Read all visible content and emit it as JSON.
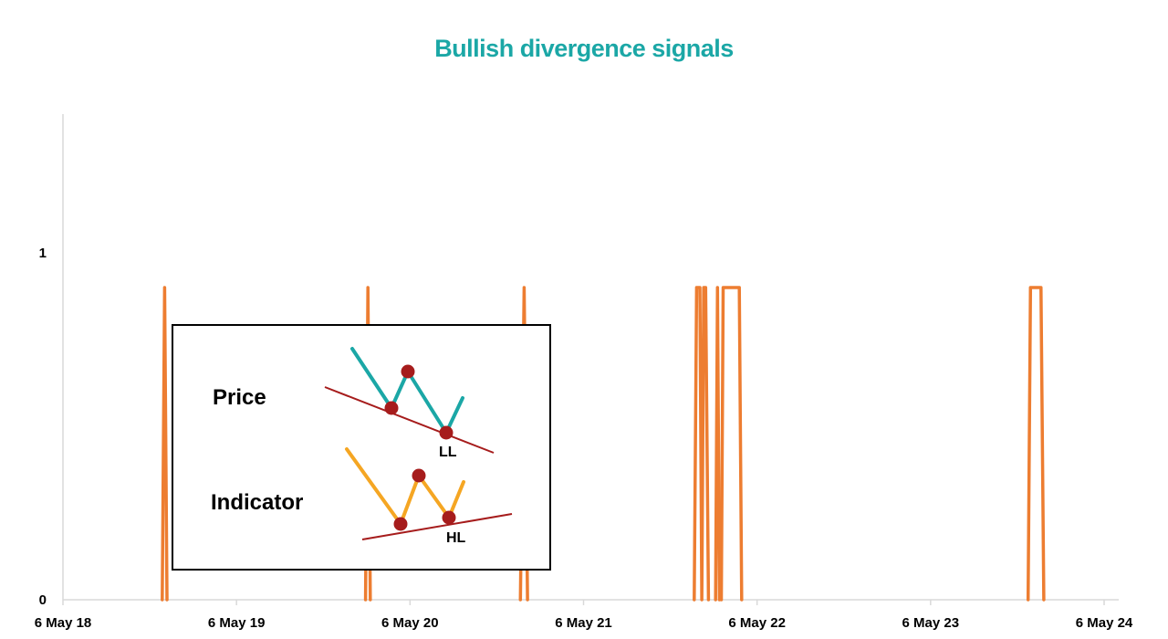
{
  "chart_data": {
    "type": "line",
    "title": "Bullish divergence signals",
    "xlabel": "",
    "ylabel": "",
    "x_ticks": [
      "6 May 18",
      "6 May 19",
      "6 May 20",
      "6 May 21",
      "6 May 22",
      "6 May 23",
      "6 May 24"
    ],
    "y_ticks": [
      "0",
      "1"
    ],
    "ylim": [
      0,
      1.4
    ],
    "xlim": [
      "2018-05-06",
      "2024-05-06"
    ],
    "series": [
      {
        "color": "#ED7D31",
        "x": [
          "2018-12-01",
          "2018-12-06",
          "2018-12-11",
          "2020-02-02",
          "2020-02-07",
          "2020-02-12",
          "2020-12-24",
          "2021-01-01",
          "2021-01-08",
          "2021-12-25",
          "2021-12-30",
          "2022-01-06",
          "2022-01-10",
          "2022-01-14",
          "2022-01-18",
          "2022-01-24",
          "2022-02-08",
          "2022-02-12",
          "2022-02-16",
          "2022-02-20",
          "2022-02-24",
          "2022-03-01",
          "2022-03-05",
          "2022-03-30",
          "2022-04-04",
          "2023-11-28",
          "2023-12-03",
          "2023-12-25",
          "2023-12-31"
        ],
        "values": [
          0,
          0.9,
          0,
          0,
          0.9,
          0,
          0,
          0.9,
          0,
          0,
          0.9,
          0.9,
          0,
          0.9,
          0.9,
          0,
          0,
          0.9,
          0,
          0,
          0.9,
          0.9,
          0.9,
          0.9,
          0,
          0,
          0.9,
          0.9,
          0
        ]
      }
    ],
    "inset": {
      "price_label": "Price",
      "indicator_label": "Indicator",
      "price_low_label": "LL",
      "indicator_low_label": "HL"
    }
  },
  "colors": {
    "title": "#1BA7A6",
    "series": "#ED7D31",
    "axis": "#D9D9D9",
    "inset_price_line": "#1BA7A6",
    "inset_indicator_line": "#F5A623",
    "inset_trend_line": "#A61C1C",
    "inset_points": "#A61C1C"
  }
}
